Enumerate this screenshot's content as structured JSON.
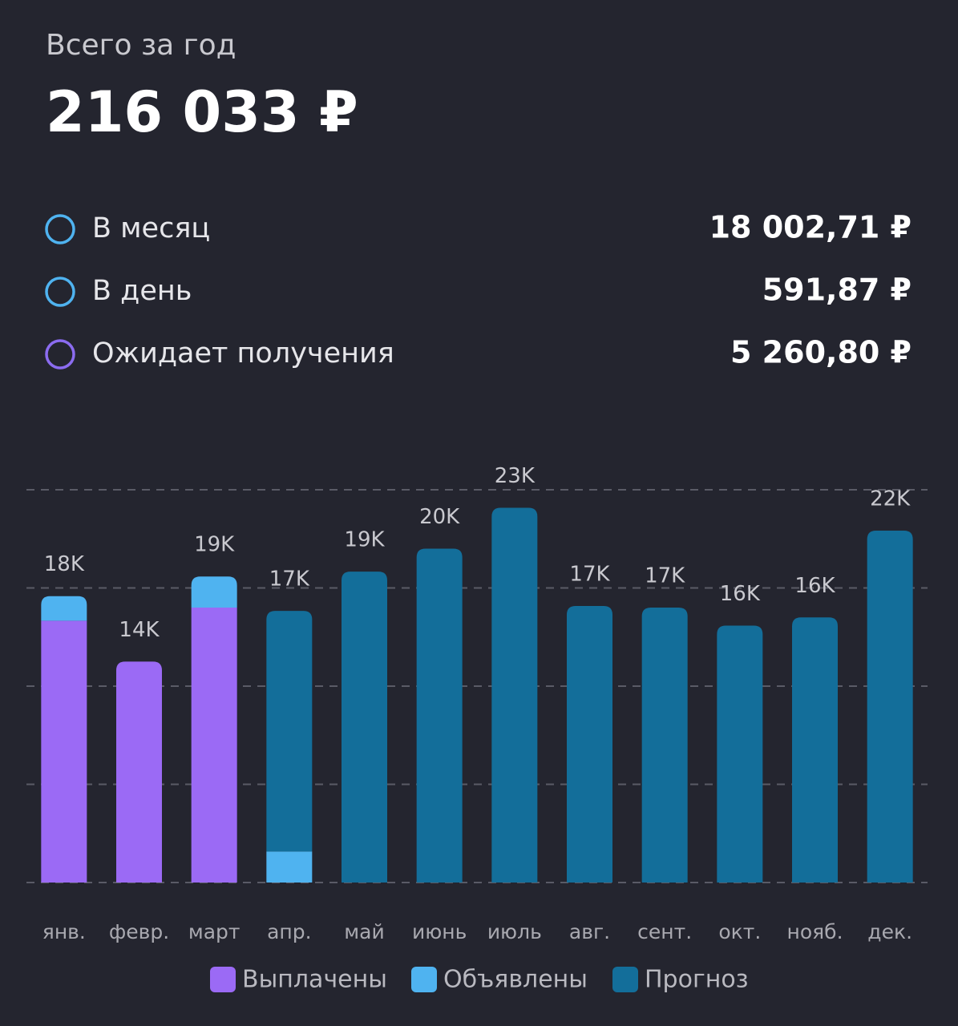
{
  "header": {
    "title": "Всего за год",
    "total": "216 033 ₽"
  },
  "stats": [
    {
      "label": "В месяц",
      "value": "18 002,71 ₽",
      "color": "#4fb3f0"
    },
    {
      "label": "В день",
      "value": "591,87 ₽",
      "color": "#4fb3f0"
    },
    {
      "label": "Ожидает получения",
      "value": "5 260,80 ₽",
      "color": "#8b6cf0"
    }
  ],
  "chart_data": {
    "type": "stacked_bar",
    "categories": [
      "янв.",
      "февр.",
      "март",
      "апр.",
      "май",
      "июнь",
      "июль",
      "авг.",
      "сент.",
      "окт.",
      "нояб.",
      "дек."
    ],
    "series": [
      {
        "name": "Выплачены",
        "color": "#9b6af5",
        "values": [
          16000,
          13500,
          16800,
          null,
          null,
          null,
          null,
          null,
          null,
          null,
          null,
          null
        ]
      },
      {
        "name": "Объявлены",
        "color": "#4fb3f0",
        "values": [
          1500,
          null,
          1900,
          1900,
          null,
          null,
          null,
          null,
          null,
          null,
          null,
          null
        ]
      },
      {
        "name": "Прогноз",
        "color": "#136e9a",
        "values": [
          null,
          null,
          null,
          14700,
          19000,
          20400,
          22900,
          16900,
          16800,
          15700,
          16200,
          21500
        ]
      }
    ],
    "totals": {
      "values": [
        17500,
        13500,
        18700,
        16600,
        19000,
        20400,
        22900,
        16900,
        16800,
        15700,
        16200,
        21500
      ],
      "value_labels": [
        "18K",
        "14K",
        "19K",
        "17K",
        "19K",
        "20K",
        "23K",
        "17K",
        "17K",
        "16K",
        "16K",
        "22K"
      ]
    },
    "ylim": [
      0,
      24000
    ],
    "yticks": [
      0,
      6000,
      12000,
      18000,
      24000
    ],
    "grid": true
  }
}
